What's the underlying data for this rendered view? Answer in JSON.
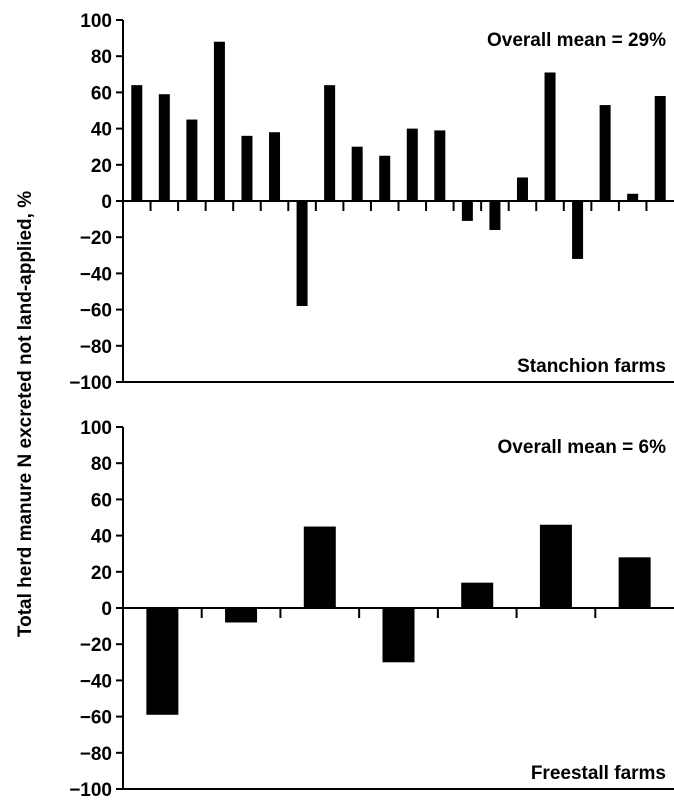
{
  "ylabel": "Total herd manure N excreted not land-applied, %",
  "bar_color": "#000000",
  "chart_data": [
    {
      "type": "bar",
      "title": "",
      "xlabel": "",
      "ylabel": "Total herd manure N excreted not land-applied, %",
      "ylim": [
        -100,
        100
      ],
      "yticks": [
        "100",
        "80",
        "60",
        "40",
        "20",
        "0",
        "-20",
        "-40",
        "-60",
        "-80",
        "-100"
      ],
      "annotation_top": "Overall mean = 29%",
      "annotation_bottom": "Stanchion farms",
      "categories": [
        "",
        "",
        "",
        "",
        "",
        "",
        "",
        "",
        "",
        "",
        "",
        "",
        "",
        "",
        "",
        "",
        "",
        "",
        "",
        ""
      ],
      "values": [
        64,
        59,
        45,
        88,
        36,
        38,
        -58,
        64,
        30,
        25,
        40,
        39,
        -11,
        -16,
        13,
        71,
        -32,
        53,
        4,
        58
      ]
    },
    {
      "type": "bar",
      "title": "",
      "xlabel": "",
      "ylabel": "Total herd manure N excreted not land-applied, %",
      "ylim": [
        -100,
        100
      ],
      "yticks": [
        "100",
        "80",
        "60",
        "40",
        "20",
        "0",
        "-20",
        "-40",
        "-60",
        "-80",
        "-100"
      ],
      "annotation_top": "Overall mean = 6%",
      "annotation_bottom": "Freestall farms",
      "categories": [
        "",
        "",
        "",
        "",
        "",
        "",
        ""
      ],
      "values": [
        -59,
        -8,
        45,
        -30,
        14,
        46,
        28
      ]
    }
  ]
}
